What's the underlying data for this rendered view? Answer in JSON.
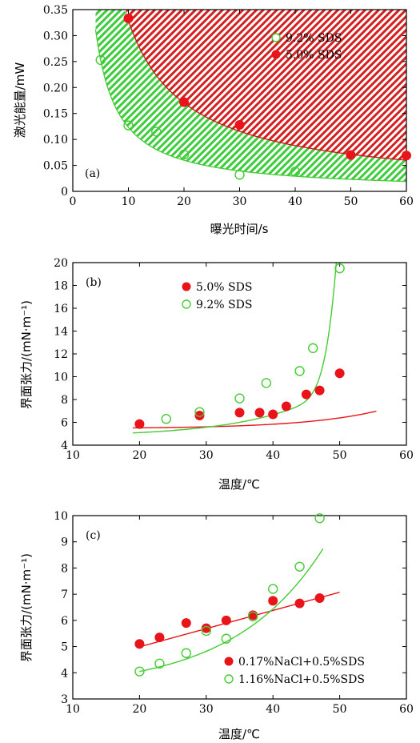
{
  "colors": {
    "red": "#e8141a",
    "green": "#44cc33",
    "ink": "#000000"
  },
  "chart_data": [
    {
      "type": "scatter",
      "panel_label": "(a)",
      "xlabel": "曝光时间/s",
      "ylabel": "激光能量/mW",
      "xlim": [
        0,
        60
      ],
      "ylim": [
        0,
        0.35
      ],
      "xticks": [
        "0",
        "10",
        "20",
        "30",
        "40",
        "50",
        "60"
      ],
      "yticks": [
        "0",
        "0.05",
        "0.10",
        "0.15",
        "0.20",
        "0.25",
        "0.30",
        "0.35"
      ],
      "legend_position": "top-right",
      "shaded_regions": [
        "red hatched region above the 5.0% SDS curve",
        "green hatched band between the 9.2% SDS and 5.0% SDS curves"
      ],
      "series": [
        {
          "name": "9.2% SDS",
          "marker": "open-circle",
          "color": "green",
          "x": [
            5,
            10,
            15,
            20,
            30,
            40
          ],
          "y": [
            0.253,
            0.127,
            0.115,
            0.071,
            0.032,
            0.038
          ],
          "fit": {
            "a": 1.35,
            "k": -1.04,
            "xmin": 4.1,
            "xmax": 60
          }
        },
        {
          "name": "5.0% SDS",
          "marker": "filled-circle",
          "color": "red",
          "x": [
            10,
            20,
            30,
            50,
            60
          ],
          "y": [
            0.333,
            0.172,
            0.128,
            0.07,
            0.069
          ],
          "fit": {
            "a": 2.93,
            "k": -0.95,
            "xmin": 9.6,
            "xmax": 60
          }
        }
      ]
    },
    {
      "type": "scatter",
      "panel_label": "(b)",
      "xlabel": "温度/℃",
      "ylabel": "界面张力/(mN·m⁻¹)",
      "xlim": [
        10,
        60
      ],
      "ylim": [
        4,
        20
      ],
      "xticks": [
        "10",
        "20",
        "30",
        "40",
        "50",
        "60"
      ],
      "yticks": [
        "4",
        "6",
        "8",
        "10",
        "12",
        "14",
        "16",
        "18",
        "20"
      ],
      "legend_position": "top-left",
      "series": [
        {
          "name": "5.0% SDS",
          "marker": "filled-circle",
          "color": "red",
          "x": [
            20,
            29,
            35,
            38,
            40,
            42,
            45,
            47,
            50
          ],
          "y": [
            5.85,
            6.6,
            6.85,
            6.85,
            6.7,
            7.4,
            8.45,
            8.8,
            10.3
          ],
          "fit": {
            "c": 5.45,
            "a": 0.065,
            "k": 0.089,
            "x0": 20,
            "xmin": 19,
            "xmax": 55.5
          }
        },
        {
          "name": "9.2% SDS",
          "marker": "open-circle",
          "color": "green",
          "x": [
            24,
            29,
            35,
            39,
            44,
            46,
            50
          ],
          "y": [
            6.3,
            6.9,
            8.1,
            9.45,
            10.5,
            12.5,
            19.5
          ],
          "fit": {
            "c": 4.75,
            "a": 0.35,
            "k": 0.085,
            "x0": 20,
            "xmin": 19,
            "xmax": 50.3,
            "extra": {
              "c2": 1.5e-05,
              "p": 6
            }
          }
        }
      ]
    },
    {
      "type": "scatter",
      "panel_label": "(c)",
      "xlabel": "温度/℃",
      "ylabel": "界面张力/(mN·m⁻¹)",
      "xlim": [
        10,
        60
      ],
      "ylim": [
        3,
        10
      ],
      "xticks": [
        "10",
        "20",
        "30",
        "40",
        "50",
        "60"
      ],
      "yticks": [
        "3",
        "4",
        "5",
        "6",
        "7",
        "8",
        "9",
        "10"
      ],
      "legend_position": "bottom-right",
      "series": [
        {
          "name": "0.17%NaCl+0.5%SDS",
          "marker": "filled-circle",
          "color": "red",
          "x": [
            20,
            23,
            27,
            30,
            33,
            37,
            40,
            44,
            47
          ],
          "y": [
            5.1,
            5.35,
            5.9,
            5.7,
            6.0,
            6.2,
            6.75,
            6.65,
            6.85
          ],
          "fit": {
            "m": 0.0695,
            "b": 3.6,
            "xmin": 20,
            "xmax": 50
          }
        },
        {
          "name": "1.16%NaCl+0.5%SDS",
          "marker": "open-circle",
          "color": "green",
          "x": [
            20,
            23,
            27,
            30,
            33,
            37,
            40,
            44,
            47
          ],
          "y": [
            4.05,
            4.35,
            4.75,
            5.6,
            5.3,
            6.15,
            7.2,
            8.05,
            9.9
          ],
          "fit": {
            "c": 3.35,
            "a": 0.7,
            "k": 0.0742,
            "x0": 20,
            "xmin": 20,
            "xmax": 47.5
          }
        }
      ]
    }
  ]
}
